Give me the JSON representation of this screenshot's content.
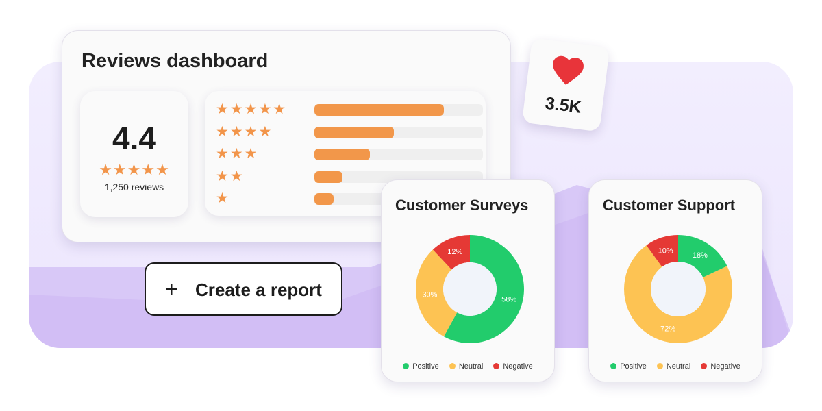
{
  "dashboard": {
    "title": "Reviews dashboard",
    "score": "4.4",
    "score_stars": "★★★★★",
    "review_count": "1,250 reviews",
    "rating_rows": [
      {
        "stars": "★★★★★",
        "fraction": 0.77
      },
      {
        "stars": "★★★★",
        "fraction": 0.47
      },
      {
        "stars": "★★★",
        "fraction": 0.33
      },
      {
        "stars": "★★",
        "fraction": 0.165
      },
      {
        "stars": "★",
        "fraction": 0.115
      }
    ]
  },
  "likes": {
    "count": "3.5K",
    "icon": "heart-icon",
    "color": "#e8343a"
  },
  "create_report": {
    "icon": "plus-icon",
    "plus": "+",
    "label": "Create a report"
  },
  "colors": {
    "positive": "#22cc6c",
    "neutral": "#fdc353",
    "negative": "#e53935",
    "bar": "#f2974a",
    "star": "#f2954a"
  },
  "chart_data": [
    {
      "type": "pie",
      "title": "Customer Surveys",
      "categories": [
        "Positive",
        "Neutral",
        "Negative"
      ],
      "values": [
        58,
        30,
        12
      ],
      "labels": [
        "58%",
        "30%",
        "12%"
      ],
      "legend": "bottom"
    },
    {
      "type": "pie",
      "title": "Customer Support",
      "categories": [
        "Positive",
        "Neutral",
        "Negative"
      ],
      "values": [
        18,
        72,
        10
      ],
      "labels": [
        "18%",
        "72%",
        "10%"
      ],
      "legend": "bottom"
    }
  ]
}
